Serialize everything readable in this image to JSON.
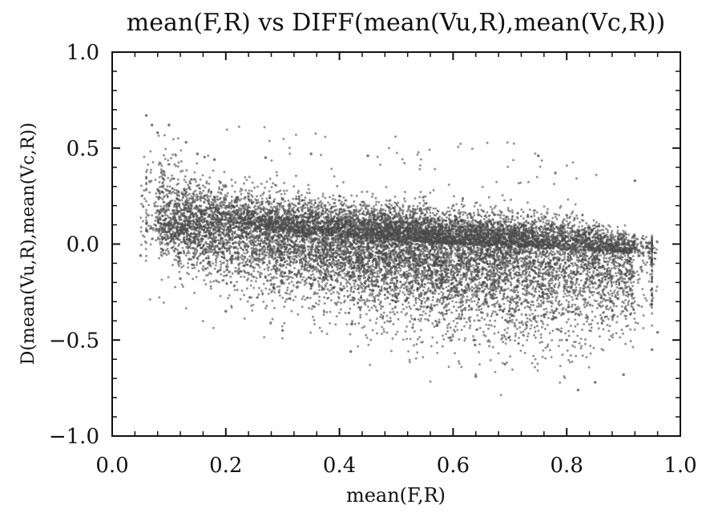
{
  "chart_data": {
    "type": "scatter",
    "title": "mean(F,R) vs DIFF(mean(Vu,R),mean(Vc,R))",
    "xlabel": "mean(F,R)",
    "ylabel": "D(mean(Vu,R),mean(Vc,R))",
    "xlim": [
      0.0,
      1.0
    ],
    "ylim": [
      -1.0,
      1.0
    ],
    "xticks": [
      0.0,
      0.2,
      0.4,
      0.6,
      0.8,
      1.0
    ],
    "xtick_labels": [
      "0.0",
      "0.2",
      "0.4",
      "0.6",
      "0.8",
      "1.0"
    ],
    "yticks": [
      -1.0,
      -0.5,
      0.0,
      0.5,
      1.0
    ],
    "ytick_labels": [
      "−1.0",
      "−0.5",
      "0.0",
      "0.5",
      "1.0"
    ],
    "grid": false,
    "legend": "none",
    "point_color": "#4a4a4a",
    "point_opacity": 0.6,
    "point_count_estimate": 15000,
    "trend_summary": {
      "center_line": [
        [
          0.05,
          0.12
        ],
        [
          0.2,
          0.09
        ],
        [
          0.4,
          0.04
        ],
        [
          0.6,
          0.0
        ],
        [
          0.8,
          -0.03
        ],
        [
          0.95,
          -0.05
        ]
      ],
      "upper_envelope": [
        [
          0.06,
          0.62
        ],
        [
          0.2,
          0.38
        ],
        [
          0.4,
          0.3
        ],
        [
          0.6,
          0.25
        ],
        [
          0.8,
          0.2
        ],
        [
          0.96,
          0.05
        ]
      ],
      "lower_envelope": [
        [
          0.05,
          -0.1
        ],
        [
          0.2,
          -0.35
        ],
        [
          0.4,
          -0.5
        ],
        [
          0.6,
          -0.65
        ],
        [
          0.8,
          -0.75
        ],
        [
          0.96,
          -0.55
        ]
      ]
    },
    "points": [
      [
        0.05,
        -0.06
      ],
      [
        0.06,
        0.67
      ],
      [
        0.07,
        0.62
      ],
      [
        0.08,
        0.58
      ],
      [
        0.1,
        0.62
      ],
      [
        0.13,
        0.53
      ],
      [
        0.15,
        0.47
      ],
      [
        0.18,
        0.44
      ],
      [
        0.27,
        0.45
      ],
      [
        0.35,
        0.47
      ],
      [
        0.45,
        0.46
      ],
      [
        0.75,
        0.46
      ],
      [
        0.78,
        0.37
      ],
      [
        0.92,
        0.33
      ],
      [
        0.96,
        -0.46
      ],
      [
        0.64,
        -0.69
      ],
      [
        0.82,
        -0.76
      ],
      [
        0.85,
        -0.72
      ],
      [
        0.9,
        -0.68
      ],
      [
        0.95,
        -0.55
      ],
      [
        0.42,
        -0.56
      ],
      [
        0.3,
        -0.45
      ],
      [
        0.2,
        -0.35
      ],
      [
        0.12,
        -0.18
      ],
      [
        0.09,
        0.38
      ],
      [
        0.1,
        0.2
      ],
      [
        0.15,
        0.12
      ],
      [
        0.2,
        0.1
      ],
      [
        0.25,
        0.08
      ],
      [
        0.3,
        0.07
      ],
      [
        0.35,
        0.05
      ],
      [
        0.4,
        0.04
      ],
      [
        0.45,
        0.03
      ],
      [
        0.5,
        0.02
      ],
      [
        0.55,
        0.01
      ],
      [
        0.6,
        0.0
      ],
      [
        0.65,
        -0.01
      ],
      [
        0.7,
        -0.02
      ],
      [
        0.75,
        -0.03
      ],
      [
        0.8,
        -0.03
      ],
      [
        0.85,
        -0.04
      ],
      [
        0.9,
        -0.05
      ],
      [
        0.2,
        0.3
      ],
      [
        0.4,
        0.25
      ],
      [
        0.6,
        0.2
      ],
      [
        0.8,
        0.15
      ],
      [
        0.3,
        -0.2
      ],
      [
        0.5,
        -0.3
      ],
      [
        0.7,
        -0.4
      ],
      [
        0.8,
        -0.5
      ]
    ]
  }
}
